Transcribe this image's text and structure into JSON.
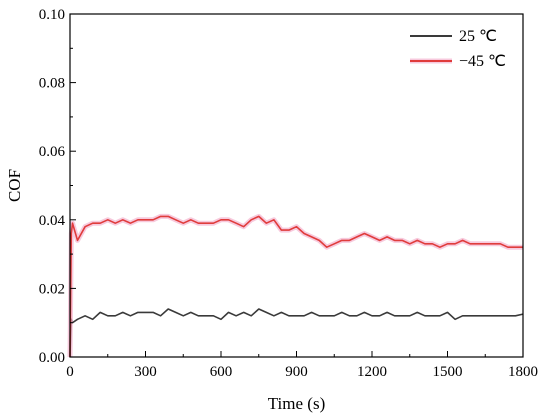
{
  "chart_data": {
    "type": "line",
    "title": "",
    "xlabel": "Time (s)",
    "ylabel": "COF",
    "xlim": [
      0,
      1800
    ],
    "ylim": [
      0.0,
      0.1
    ],
    "x_ticks": [
      0,
      300,
      600,
      900,
      1200,
      1500,
      1800
    ],
    "x_tick_labels": [
      "0",
      "300",
      "600",
      "900",
      "1200",
      "1500",
      "1800"
    ],
    "y_ticks": [
      0.0,
      0.02,
      0.04,
      0.06,
      0.08,
      0.1
    ],
    "y_tick_labels": [
      "0.00",
      "0.02",
      "0.04",
      "0.06",
      "0.08",
      "0.10"
    ],
    "grid": false,
    "legend_position": "top-right",
    "series": [
      {
        "name": "25 ℃",
        "color": "#3a3a3a",
        "x": [
          0,
          5,
          10,
          30,
          60,
          90,
          120,
          150,
          180,
          210,
          240,
          270,
          300,
          330,
          360,
          390,
          420,
          450,
          480,
          510,
          540,
          570,
          600,
          630,
          660,
          690,
          720,
          750,
          780,
          810,
          840,
          870,
          900,
          930,
          960,
          990,
          1020,
          1050,
          1080,
          1110,
          1140,
          1170,
          1200,
          1230,
          1260,
          1290,
          1320,
          1350,
          1380,
          1410,
          1440,
          1470,
          1500,
          1530,
          1560,
          1590,
          1620,
          1650,
          1680,
          1710,
          1740,
          1770,
          1800
        ],
        "values": [
          0.0,
          0.011,
          0.01,
          0.011,
          0.012,
          0.011,
          0.013,
          0.012,
          0.012,
          0.013,
          0.012,
          0.013,
          0.013,
          0.013,
          0.012,
          0.014,
          0.013,
          0.012,
          0.013,
          0.012,
          0.012,
          0.012,
          0.011,
          0.013,
          0.012,
          0.013,
          0.012,
          0.014,
          0.013,
          0.012,
          0.013,
          0.012,
          0.012,
          0.012,
          0.013,
          0.012,
          0.012,
          0.012,
          0.013,
          0.012,
          0.012,
          0.013,
          0.012,
          0.012,
          0.013,
          0.012,
          0.012,
          0.012,
          0.013,
          0.012,
          0.012,
          0.012,
          0.013,
          0.011,
          0.012,
          0.012,
          0.012,
          0.012,
          0.012,
          0.012,
          0.012,
          0.012,
          0.0125
        ]
      },
      {
        "name": "−45 ℃",
        "color": "#e03c3c",
        "x": [
          0,
          5,
          10,
          30,
          60,
          90,
          120,
          150,
          180,
          210,
          240,
          270,
          300,
          330,
          360,
          390,
          420,
          450,
          480,
          510,
          540,
          570,
          600,
          630,
          660,
          690,
          720,
          750,
          780,
          810,
          840,
          870,
          900,
          930,
          960,
          990,
          1020,
          1050,
          1080,
          1110,
          1140,
          1170,
          1200,
          1230,
          1260,
          1290,
          1320,
          1350,
          1380,
          1410,
          1440,
          1470,
          1500,
          1530,
          1560,
          1590,
          1620,
          1650,
          1680,
          1710,
          1740,
          1770,
          1800
        ],
        "values": [
          0.0,
          0.036,
          0.039,
          0.034,
          0.038,
          0.039,
          0.039,
          0.04,
          0.039,
          0.04,
          0.039,
          0.04,
          0.04,
          0.04,
          0.041,
          0.041,
          0.04,
          0.039,
          0.04,
          0.039,
          0.039,
          0.039,
          0.04,
          0.04,
          0.039,
          0.038,
          0.04,
          0.041,
          0.039,
          0.04,
          0.037,
          0.037,
          0.038,
          0.036,
          0.035,
          0.034,
          0.032,
          0.033,
          0.034,
          0.034,
          0.035,
          0.036,
          0.035,
          0.034,
          0.035,
          0.034,
          0.034,
          0.033,
          0.034,
          0.033,
          0.033,
          0.032,
          0.033,
          0.033,
          0.034,
          0.033,
          0.033,
          0.033,
          0.033,
          0.033,
          0.032,
          0.032,
          0.032
        ]
      }
    ]
  }
}
